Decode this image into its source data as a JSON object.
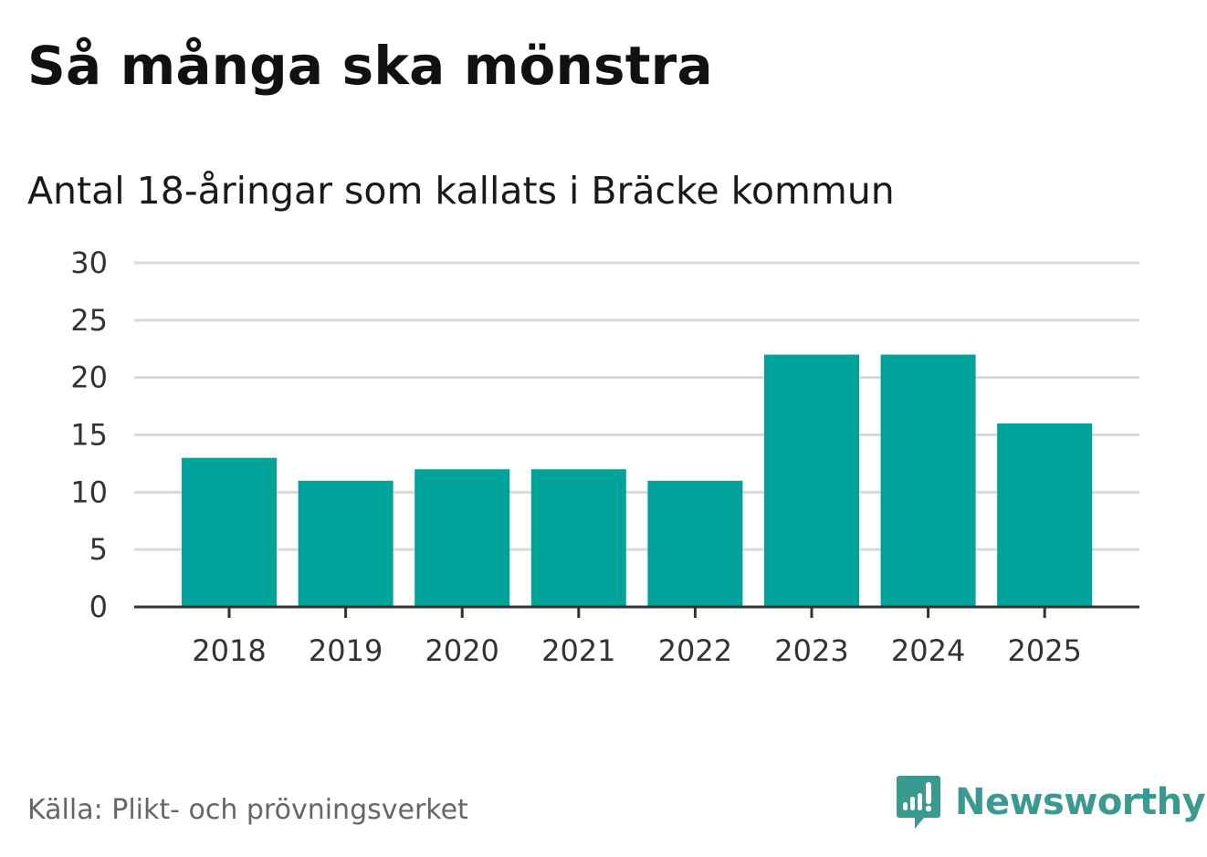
{
  "header": {
    "title": "Så många ska mönstra",
    "subtitle": "Antal 18-åringar som kallats i Bräcke kommun"
  },
  "footer": {
    "source": "Källa: Plikt- och prövningsverket",
    "brand_name": "Newsworthy",
    "brand_icon": "newsworthy-logo-icon",
    "brand_color": "#3a9a8f"
  },
  "colors": {
    "bar": "#00a39a",
    "grid": "#d9d9d9",
    "axis": "#333333"
  },
  "chart_data": {
    "type": "bar",
    "title": "Så många ska mönstra",
    "subtitle": "Antal 18-åringar som kallats i Bräcke kommun",
    "xlabel": "",
    "ylabel": "",
    "categories": [
      "2018",
      "2019",
      "2020",
      "2021",
      "2022",
      "2023",
      "2024",
      "2025"
    ],
    "values": [
      13,
      11,
      12,
      12,
      11,
      22,
      22,
      16
    ],
    "ylim": [
      0,
      30
    ],
    "yticks": [
      0,
      5,
      10,
      15,
      20,
      25,
      30
    ],
    "grid": true,
    "legend": "none"
  }
}
